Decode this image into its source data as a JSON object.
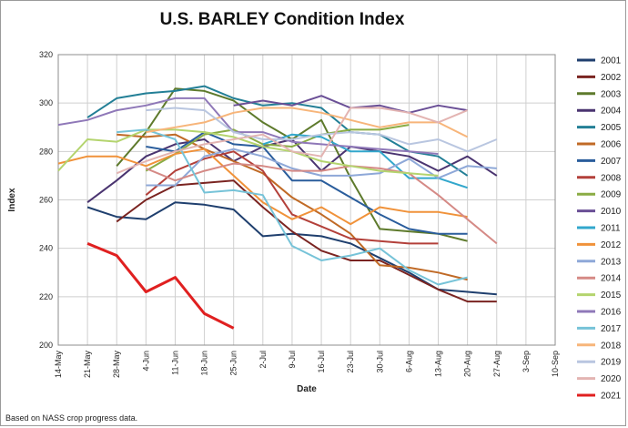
{
  "chart_data": {
    "type": "line",
    "title": "U.S. BARLEY Condition Index",
    "xlabel": "Date",
    "ylabel": "Index",
    "ylim": [
      200,
      320
    ],
    "yticks": [
      200,
      220,
      240,
      260,
      280,
      300,
      320
    ],
    "xticks": [
      "14-May",
      "21-May",
      "28-May",
      "4-Jun",
      "11-Jun",
      "18-Jun",
      "25-Jun",
      "2-Jul",
      "9-Jul",
      "16-Jul",
      "23-Jul",
      "30-Jul",
      "6-Aug",
      "13-Aug",
      "20-Aug",
      "27-Aug",
      "3-Sep",
      "10-Sep"
    ],
    "grid": true,
    "legend": "right",
    "footnote": "Based on NASS crop progress data.",
    "series": [
      {
        "name": "2001",
        "color": "#1f3f6e",
        "start": 1,
        "values": [
          257,
          253,
          252,
          259,
          258,
          256,
          245,
          246,
          245,
          242,
          236,
          230,
          223,
          222,
          221
        ]
      },
      {
        "name": "2002",
        "color": "#7a2421",
        "start": 2,
        "values": [
          251,
          260,
          266,
          267,
          268,
          257,
          247,
          239,
          235,
          235,
          229,
          223,
          218,
          218
        ]
      },
      {
        "name": "2003",
        "color": "#5e7a2c",
        "start": 2,
        "values": [
          274,
          288,
          306,
          305,
          301,
          292,
          285,
          293,
          269,
          248,
          247,
          246,
          243
        ]
      },
      {
        "name": "2004",
        "color": "#4a3470",
        "start": 1,
        "values": [
          259,
          268,
          278,
          283,
          285,
          276,
          282,
          285,
          272,
          282,
          280,
          278,
          272,
          278,
          270
        ]
      },
      {
        "name": "2005",
        "color": "#237f96",
        "start": 1,
        "values": [
          294,
          302,
          304,
          305,
          307,
          302,
          299,
          300,
          298,
          288,
          287,
          280,
          278,
          270
        ]
      },
      {
        "name": "2006",
        "color": "#c06a26",
        "start": 2,
        "values": [
          287,
          286,
          287,
          281,
          276,
          271,
          261,
          254,
          246,
          233,
          232,
          230,
          227
        ]
      },
      {
        "name": "2007",
        "color": "#2a5d9c",
        "start": 3,
        "values": [
          282,
          280,
          288,
          283,
          282,
          268,
          268,
          261,
          254,
          248,
          246,
          246
        ]
      },
      {
        "name": "2008",
        "color": "#b3403a",
        "start": 3,
        "values": [
          262,
          272,
          277,
          280,
          272,
          254,
          249,
          244,
          243,
          242,
          242
        ]
      },
      {
        "name": "2009",
        "color": "#8aac44",
        "start": 3,
        "values": [
          272,
          279,
          287,
          289,
          283,
          282,
          287,
          289,
          289,
          291
        ]
      },
      {
        "name": "2010",
        "color": "#6a4f96",
        "start": 6,
        "values": [
          299,
          301,
          299,
          303,
          298,
          299,
          296,
          299,
          297
        ]
      },
      {
        "name": "2011",
        "color": "#32a7cc",
        "start": 7,
        "values": [
          283,
          287,
          286,
          280,
          280,
          269,
          269,
          265
        ]
      },
      {
        "name": "2012",
        "color": "#f0923a",
        "start": 0,
        "values": [
          275,
          278,
          278,
          274,
          279,
          281,
          270,
          259,
          252,
          257,
          250,
          257,
          255,
          255,
          253
        ]
      },
      {
        "name": "2013",
        "color": "#8ea8d8",
        "start": 3,
        "values": [
          266,
          266,
          278,
          281,
          278,
          273,
          270,
          270,
          271,
          277,
          269,
          274,
          273
        ]
      },
      {
        "name": "2014",
        "color": "#d58a86",
        "start": 3,
        "values": [
          273,
          268,
          272,
          275,
          274,
          272,
          272,
          274,
          273,
          271,
          262,
          252,
          242
        ]
      },
      {
        "name": "2015",
        "color": "#b4d46e",
        "start": 0,
        "values": [
          272,
          285,
          284,
          289,
          289,
          288,
          286,
          282,
          280,
          276,
          274,
          272,
          271,
          270
        ]
      },
      {
        "name": "2016",
        "color": "#8f78b8",
        "start": 0,
        "values": [
          291,
          293,
          297,
          299,
          302,
          302,
          288,
          288,
          284,
          283,
          282,
          281,
          280,
          279
        ]
      },
      {
        "name": "2017",
        "color": "#76c3d8",
        "start": 2,
        "values": [
          288,
          289,
          285,
          263,
          264,
          262,
          241,
          235,
          237,
          240,
          231,
          225,
          228
        ]
      },
      {
        "name": "2018",
        "color": "#f7b57a",
        "start": 3,
        "values": [
          288,
          290,
          292,
          296,
          298,
          298,
          296,
          293,
          290,
          292,
          292,
          286
        ]
      },
      {
        "name": "2019",
        "color": "#b9c6e0",
        "start": 3,
        "values": [
          297,
          298,
          297,
          288,
          285,
          285,
          287,
          288,
          287,
          283,
          285,
          280,
          285
        ]
      },
      {
        "name": "2020",
        "color": "#e3b4b2",
        "start": 2,
        "values": [
          271,
          276,
          280,
          283,
          285,
          287,
          280,
          278,
          298,
          298,
          296,
          292,
          297
        ]
      },
      {
        "name": "2021",
        "color": "#e02020",
        "start": 1,
        "values": [
          242,
          237,
          222,
          228,
          213,
          207
        ]
      }
    ]
  }
}
